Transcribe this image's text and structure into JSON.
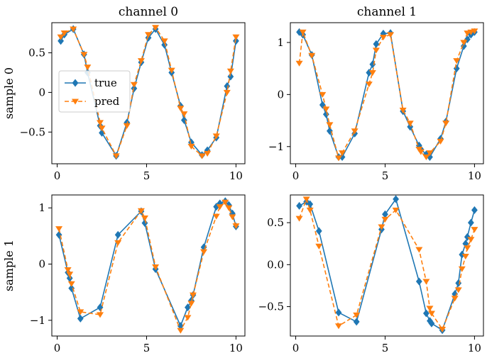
{
  "colors": {
    "true": "#1f77b4",
    "pred": "#ff7f0e",
    "axes": "#000000",
    "legend_border": "#cccccc"
  },
  "chart_data": [
    {
      "type": "line",
      "title": "channel 0",
      "ylabel": "sample 0",
      "xlim": [
        -0.3,
        10.5
      ],
      "ylim": [
        -0.9,
        0.88
      ],
      "xticks": [
        0,
        5,
        10
      ],
      "yticks": [
        -0.5,
        0,
        0.5
      ],
      "ytick_labels": [
        "−0.5",
        "0",
        "0.5"
      ],
      "legend": {
        "placement": "center-left",
        "entries": [
          "true",
          "pred"
        ]
      },
      "series": [
        {
          "name": "true",
          "style": "solid-diamond",
          "x": [
            0.2,
            0.4,
            0.9,
            1.5,
            1.7,
            2.4,
            2.5,
            3.3,
            3.9,
            4.3,
            4.7,
            5.1,
            5.5,
            6.0,
            6.4,
            6.9,
            7.1,
            7.5,
            8.1,
            8.4,
            8.9,
            9.5,
            9.7,
            10.0
          ],
          "y": [
            0.65,
            0.73,
            0.8,
            0.48,
            0.25,
            -0.42,
            -0.51,
            -0.8,
            -0.38,
            0.05,
            0.38,
            0.69,
            0.8,
            0.6,
            0.25,
            -0.17,
            -0.35,
            -0.63,
            -0.79,
            -0.73,
            -0.57,
            0.08,
            0.2,
            0.65
          ]
        },
        {
          "name": "pred",
          "style": "dashed-triangle",
          "x": [
            0.2,
            0.4,
            0.9,
            1.5,
            1.7,
            2.4,
            2.5,
            3.3,
            3.9,
            4.3,
            4.7,
            5.1,
            5.5,
            6.0,
            6.4,
            6.9,
            7.1,
            7.5,
            8.1,
            8.4,
            8.9,
            9.5,
            9.7,
            10.0
          ],
          "y": [
            0.7,
            0.75,
            0.8,
            0.48,
            0.32,
            -0.38,
            -0.45,
            -0.8,
            -0.42,
            0.1,
            0.4,
            0.73,
            0.82,
            0.65,
            0.28,
            -0.2,
            -0.27,
            -0.68,
            -0.8,
            -0.77,
            -0.55,
            0.0,
            0.27,
            0.7
          ]
        }
      ]
    },
    {
      "type": "line",
      "title": "channel 1",
      "ylabel": "",
      "xlim": [
        -0.3,
        10.5
      ],
      "ylim": [
        -1.33,
        1.38
      ],
      "xticks": [
        0,
        5,
        10
      ],
      "yticks": [
        -1,
        0,
        1
      ],
      "ytick_labels": [
        "−1",
        "0",
        "1"
      ],
      "series": [
        {
          "name": "true",
          "style": "solid-diamond",
          "x": [
            0.2,
            0.4,
            0.9,
            1.5,
            1.7,
            1.9,
            2.4,
            2.6,
            3.3,
            4.1,
            4.3,
            4.5,
            4.9,
            5.3,
            6.0,
            6.4,
            6.9,
            7.0,
            7.3,
            7.5,
            8.1,
            8.4,
            9.0,
            9.4,
            9.6,
            9.8,
            10.0
          ],
          "y": [
            1.2,
            1.15,
            0.76,
            -0.2,
            -0.38,
            -0.7,
            -1.2,
            -1.2,
            -0.75,
            0.42,
            0.58,
            0.97,
            1.17,
            1.18,
            -0.32,
            -0.62,
            -0.98,
            -1.05,
            -1.15,
            -1.2,
            -0.85,
            -0.52,
            0.5,
            0.93,
            1.06,
            1.15,
            1.2
          ]
        },
        {
          "name": "pred",
          "style": "dashed-triangle",
          "x": [
            0.2,
            0.4,
            0.9,
            1.5,
            1.7,
            1.9,
            2.4,
            2.6,
            3.3,
            4.1,
            4.3,
            4.5,
            4.9,
            5.3,
            6.0,
            6.4,
            6.9,
            7.0,
            7.3,
            7.5,
            8.1,
            8.4,
            9.0,
            9.4,
            9.6,
            9.8,
            10.0
          ],
          "y": [
            0.6,
            1.2,
            0.75,
            0.0,
            -0.28,
            -0.58,
            -1.22,
            -1.12,
            -0.7,
            0.2,
            0.42,
            0.85,
            1.1,
            1.15,
            -0.3,
            -0.55,
            -1.05,
            -1.1,
            -1.2,
            -1.12,
            -0.9,
            -0.55,
            0.65,
            1.0,
            1.18,
            1.2,
            1.22
          ]
        }
      ]
    },
    {
      "type": "line",
      "title": "",
      "ylabel": "sample 1",
      "xlim": [
        -0.3,
        10.5
      ],
      "ylim": [
        -1.28,
        1.23
      ],
      "xticks": [
        0,
        5,
        10
      ],
      "yticks": [
        -1,
        0,
        1
      ],
      "ytick_labels": [
        "−1",
        "0",
        "1"
      ],
      "series": [
        {
          "name": "true",
          "style": "solid-diamond",
          "x": [
            0.1,
            0.6,
            0.7,
            0.8,
            1.3,
            2.4,
            3.4,
            4.7,
            4.9,
            5.5,
            6.9,
            7.3,
            7.5,
            7.6,
            8.2,
            8.9,
            9.1,
            9.4,
            9.6,
            9.8,
            10.0
          ],
          "y": [
            0.52,
            -0.15,
            -0.25,
            -0.43,
            -0.97,
            -0.77,
            0.52,
            0.94,
            0.73,
            -0.09,
            -1.1,
            -0.77,
            -0.65,
            -0.55,
            0.3,
            1.02,
            1.08,
            1.12,
            1.05,
            0.9,
            0.67
          ]
        },
        {
          "name": "pred",
          "style": "dashed-triangle",
          "x": [
            0.1,
            0.6,
            0.7,
            0.8,
            1.3,
            2.4,
            3.4,
            4.7,
            4.9,
            5.5,
            6.9,
            7.3,
            7.5,
            7.6,
            8.2,
            8.9,
            9.1,
            9.4,
            9.6,
            9.8,
            10.0
          ],
          "y": [
            0.63,
            -0.1,
            -0.18,
            -0.35,
            -0.85,
            -0.9,
            0.38,
            0.95,
            0.82,
            -0.05,
            -1.18,
            -0.95,
            -0.7,
            -0.55,
            0.22,
            0.85,
            1.02,
            1.1,
            1.0,
            0.84,
            0.68
          ]
        }
      ]
    },
    {
      "type": "line",
      "title": "",
      "ylabel": "",
      "xlim": [
        -0.3,
        10.5
      ],
      "ylim": [
        -0.85,
        0.83
      ],
      "xticks": [
        0,
        5,
        10
      ],
      "yticks": [
        -0.5,
        0,
        0.5
      ],
      "ytick_labels": [
        "−0.5",
        "0.0",
        "0.5"
      ],
      "series": [
        {
          "name": "true",
          "style": "solid-diamond",
          "x": [
            0.2,
            0.6,
            0.8,
            1.3,
            2.4,
            3.4,
            4.8,
            5.0,
            5.6,
            6.9,
            7.3,
            7.5,
            7.6,
            8.2,
            8.9,
            9.1,
            9.3,
            9.5,
            9.6,
            9.8,
            10.0
          ],
          "y": [
            0.7,
            0.75,
            0.72,
            0.4,
            -0.57,
            -0.68,
            0.42,
            0.6,
            0.78,
            -0.2,
            -0.58,
            -0.67,
            -0.7,
            -0.78,
            -0.35,
            -0.22,
            0.12,
            0.25,
            0.33,
            0.5,
            0.65
          ]
        },
        {
          "name": "pred",
          "style": "dashed-triangle",
          "x": [
            0.2,
            0.6,
            0.8,
            1.3,
            2.4,
            3.4,
            4.8,
            5.0,
            5.6,
            6.9,
            7.3,
            7.5,
            7.6,
            8.2,
            8.9,
            9.1,
            9.3,
            9.5,
            9.6,
            9.8,
            10.0
          ],
          "y": [
            0.55,
            0.78,
            0.65,
            0.22,
            -0.73,
            -0.6,
            0.45,
            0.54,
            0.65,
            0.18,
            -0.2,
            -0.52,
            -0.58,
            -0.77,
            -0.4,
            -0.3,
            -0.05,
            0.1,
            0.2,
            0.3,
            0.42
          ]
        }
      ]
    }
  ]
}
